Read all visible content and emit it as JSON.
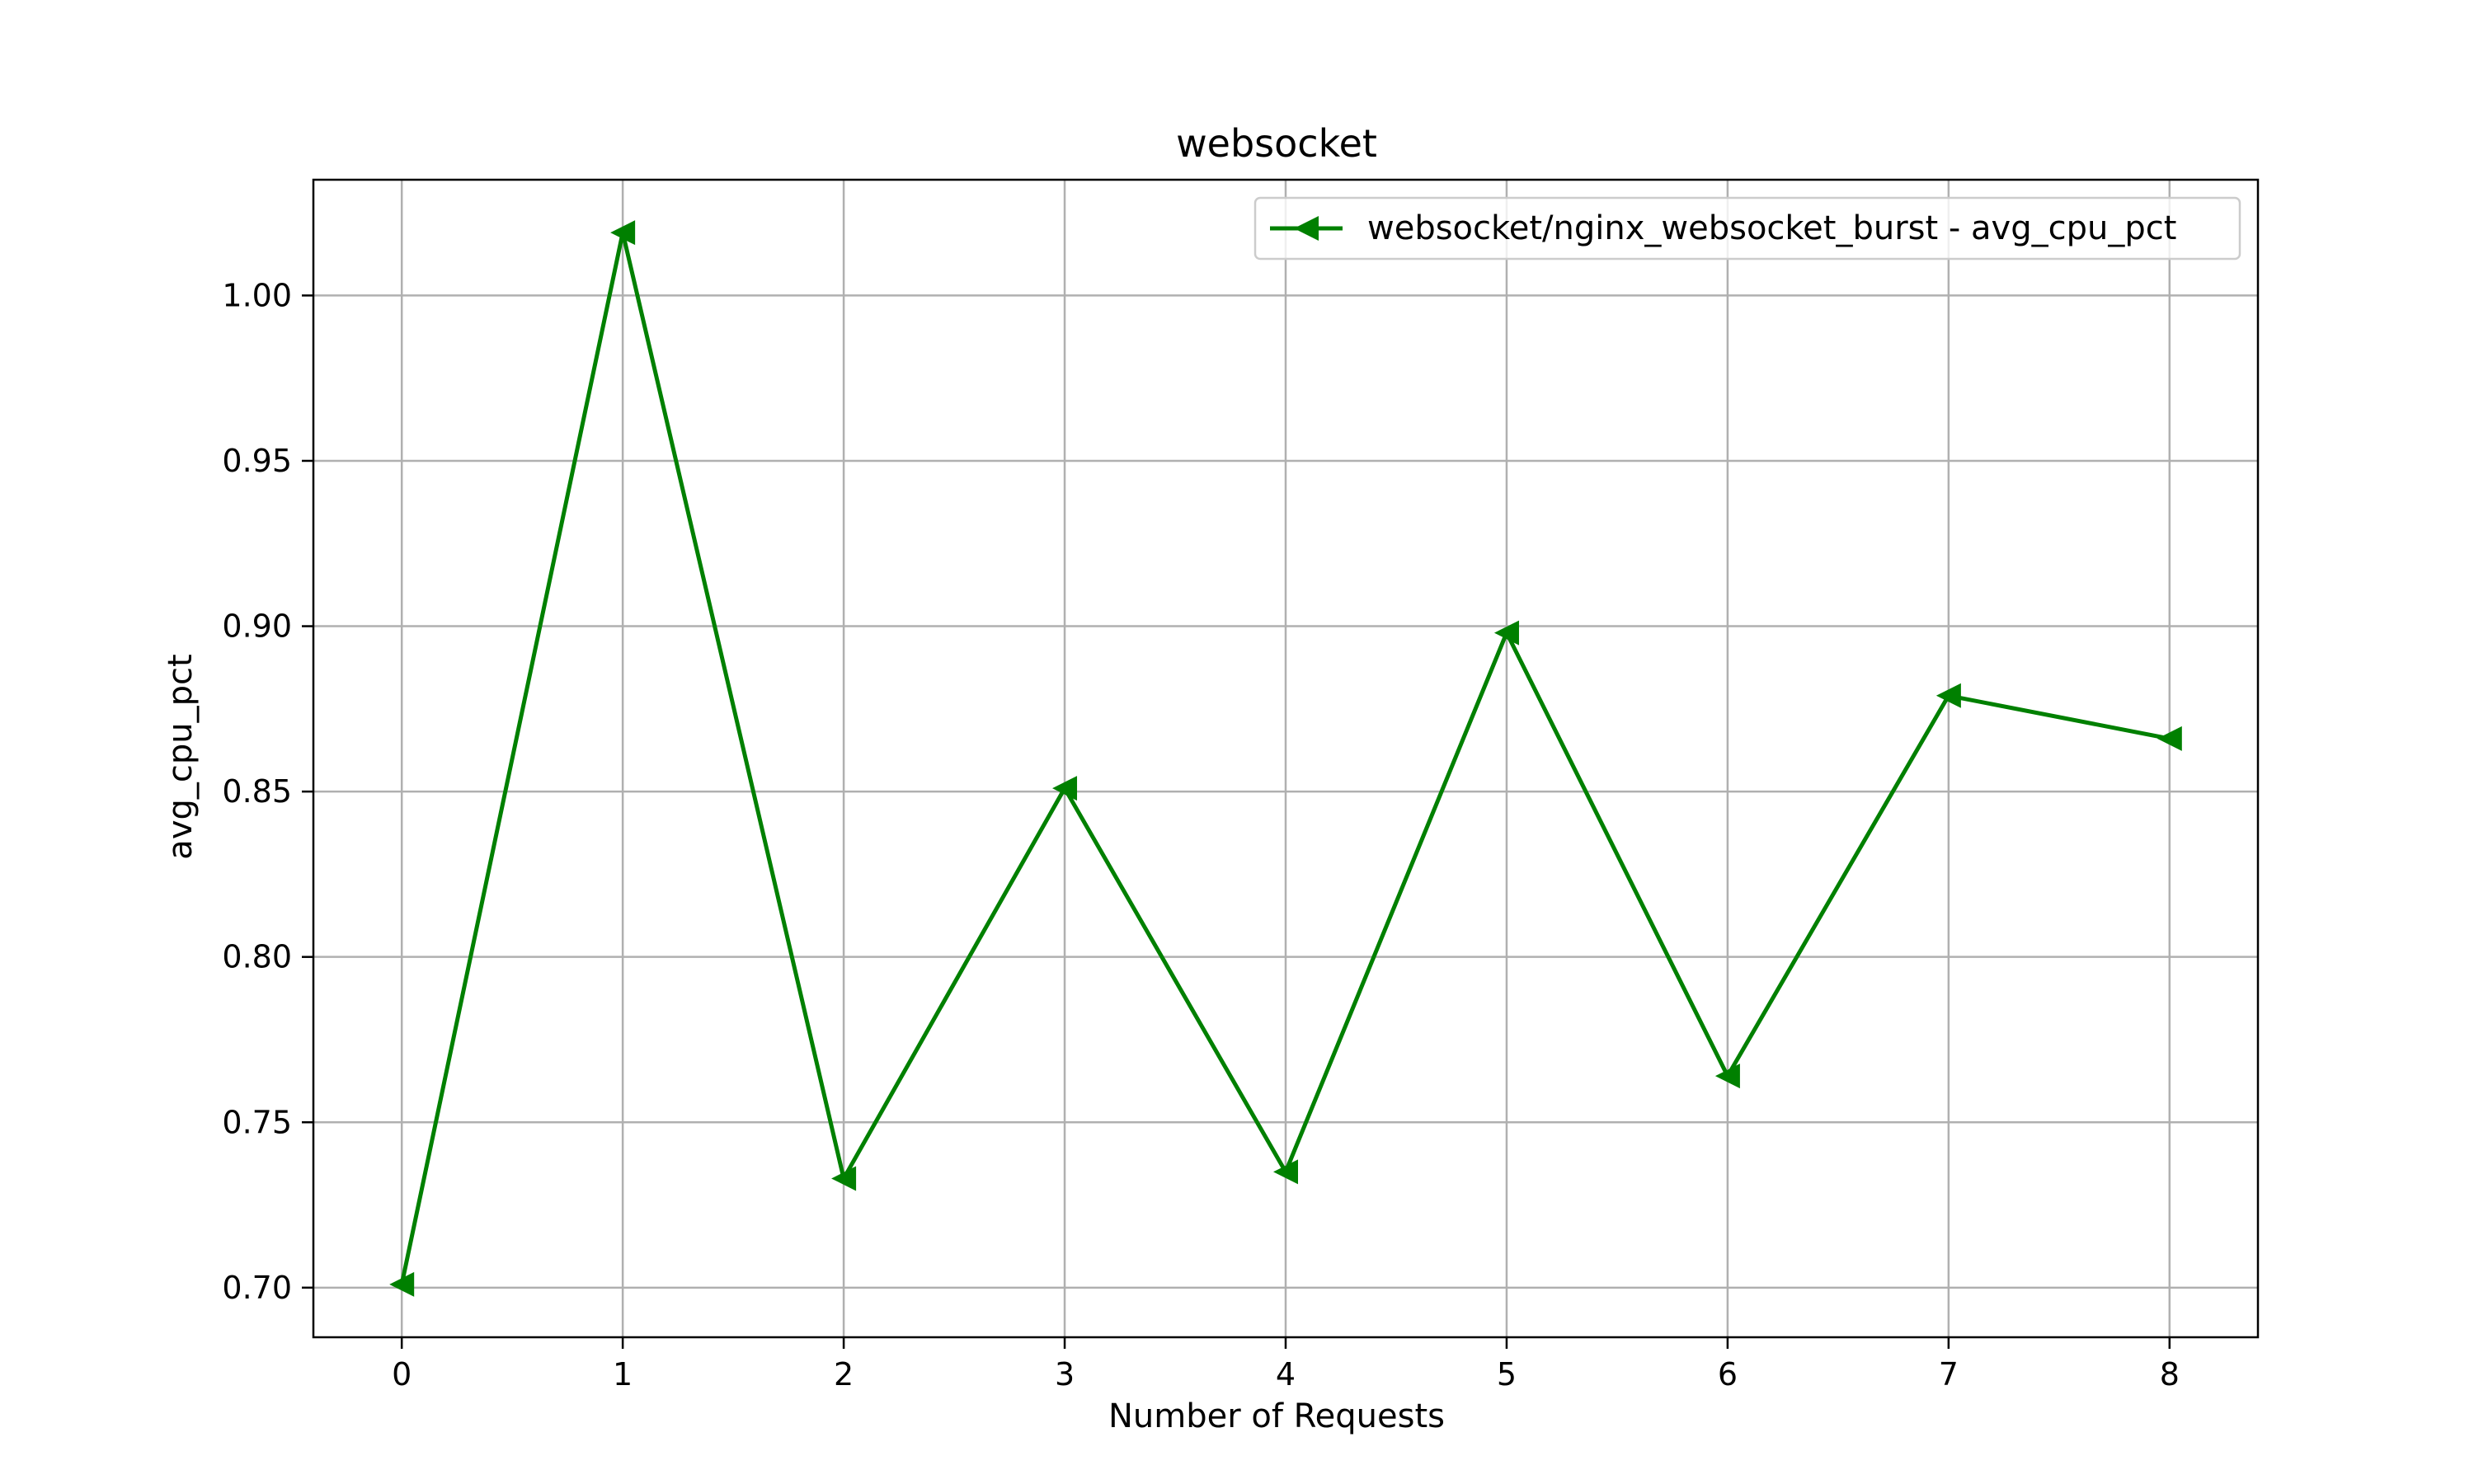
{
  "chart_data": {
    "type": "line",
    "title": "websocket",
    "xlabel": "Number of Requests",
    "ylabel": "avg_cpu_pct",
    "x": [
      0,
      1,
      2,
      3,
      4,
      5,
      6,
      7,
      8
    ],
    "series": [
      {
        "name": "websocket/nginx_websocket_burst - avg_cpu_pct",
        "values": [
          0.701,
          1.019,
          0.733,
          0.851,
          0.735,
          0.898,
          0.764,
          0.879,
          0.866
        ],
        "color": "#008000",
        "marker": "triangle-left"
      }
    ],
    "xticks": [
      0,
      1,
      2,
      3,
      4,
      5,
      6,
      7,
      8
    ],
    "xtick_labels": [
      "0",
      "1",
      "2",
      "3",
      "4",
      "5",
      "6",
      "7",
      "8"
    ],
    "yticks": [
      0.7,
      0.75,
      0.8,
      0.85,
      0.9,
      0.95,
      1.0
    ],
    "ytick_labels": [
      "0.70",
      "0.75",
      "0.80",
      "0.85",
      "0.90",
      "0.95",
      "1.00"
    ],
    "xlim": [
      -0.4,
      8.4
    ],
    "ylim": [
      0.685,
      1.035
    ],
    "grid": true,
    "legend_position": "upper right"
  }
}
